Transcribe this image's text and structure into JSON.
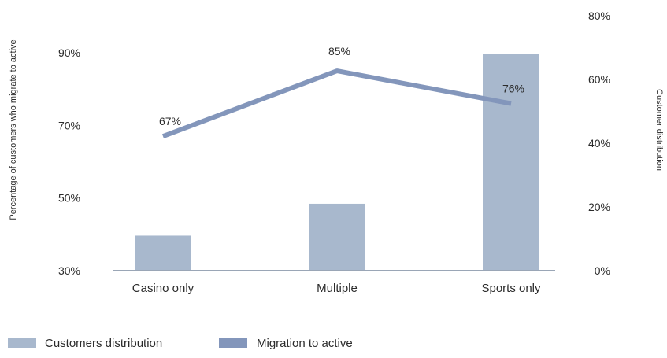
{
  "chart_data": {
    "type": "bar",
    "categories": [
      "Casino only",
      "Multiple",
      "Sports only"
    ],
    "series": [
      {
        "name": "Customers distribution",
        "type": "bar",
        "axis": "right",
        "values": [
          11,
          21,
          68
        ],
        "color": "#a8b8cd"
      },
      {
        "name": "Migration to active",
        "type": "line",
        "axis": "left",
        "values": [
          67,
          85,
          76
        ],
        "labels": [
          "67%",
          "85%",
          "76%"
        ],
        "color": "#8396bb"
      }
    ],
    "left_axis": {
      "label": "Percentage of customers who migrate to active",
      "ylim": [
        30,
        100
      ],
      "ticks": [
        30,
        50,
        70,
        90
      ],
      "tick_labels": [
        "30%",
        "50%",
        "70%",
        "90%"
      ]
    },
    "right_axis": {
      "label": "Customer distribution",
      "ylim": [
        0,
        80
      ],
      "ticks": [
        0,
        20,
        40,
        60,
        80
      ],
      "tick_labels": [
        "0%",
        "20%",
        "40%",
        "60%",
        "80%"
      ]
    },
    "grid": false,
    "legend_position": "bottom-left",
    "legend": [
      {
        "label": "Customers distribution",
        "color": "#a8b8cd"
      },
      {
        "label": "Migration to active",
        "color": "#8396bb"
      }
    ]
  }
}
